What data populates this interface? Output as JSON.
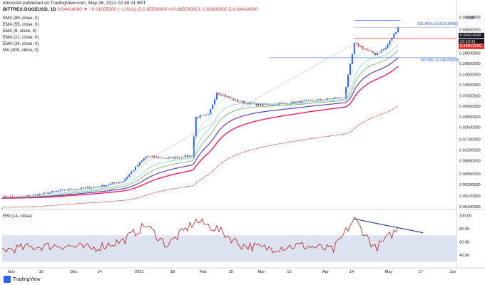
{
  "header": {
    "publisher_line": "dmoss94 published on TradingView.com, May 06, 2021 02:49:31 BST",
    "symbol": "BITTREX:DOGEUSD, 1D",
    "ohlc_text": "0.64414000 ▼ −0.01055000 (−1.61%) O:0.65500000 H:0.66578000 L:0.62603000 C:0.64414000"
  },
  "indicators": [
    "EMA (89, close, 0)",
    "EMA (55, close, 0)",
    "EMA (8, close, 0)",
    "EMA (21, close, 0)",
    "EMA (34, close, 0)",
    "MA (200, close, 0)"
  ],
  "rsi_label": "RSI (14, close)",
  "price_tags": {
    "last": "0.64414000",
    "countdown": "22:10:31",
    "level": "0.44813000"
  },
  "fib_labels": {
    "upper": "161.80% (0.81318498)",
    "lower": "50.00% (0.24076000)"
  },
  "footer": {
    "brand": "TradingView"
  },
  "colors": {
    "up": "#2962ff",
    "down": "#e53935",
    "ema89": "#e91e63",
    "ema55": "#673ab7",
    "ema8": "#b2dfdb",
    "ema21": "#80cbc4",
    "ema34": "#4caf50",
    "ma200": "#c62828",
    "rsi": "#b71c1c",
    "rsi_band": "#c5cfe6",
    "trend": "#1e3a8a"
  },
  "chart_data": [
    {
      "type": "candlestick",
      "title": "BITTREX:DOGEUSD, 1D",
      "scale": "log",
      "y_unit": "USD",
      "ylim": [
        0.0019,
        0.9
      ],
      "x_tick_labels": [
        "Nov",
        "16",
        "Dec",
        "14",
        "2021",
        "18",
        "Feb",
        "15",
        "Mar",
        "15",
        "Apr",
        "14",
        "May",
        "17",
        "Jun"
      ],
      "y_tick_labels": [
        "0.90000000",
        "0.60000000",
        "0.40000000",
        "0.28000000",
        "0.20000000",
        "0.14000000",
        "0.10000000",
        "0.07000000",
        "0.05000000",
        "0.03500000",
        "0.02500000",
        "0.01700000",
        "0.01200000",
        "0.00850000",
        "0.00550000",
        "0.00390000",
        "0.00270000",
        "0.00190000"
      ],
      "y_ticks": [
        0.9,
        0.6,
        0.4,
        0.28,
        0.2,
        0.14,
        0.1,
        0.07,
        0.05,
        0.035,
        0.025,
        0.017,
        0.012,
        0.0085,
        0.0055,
        0.0039,
        0.0027,
        0.0019
      ],
      "close_path": [
        [
          "2020-10-28",
          0.0026
        ],
        [
          "2020-11-05",
          0.0026
        ],
        [
          "2020-11-15",
          0.0028
        ],
        [
          "2020-11-25",
          0.0032
        ],
        [
          "2020-12-05",
          0.0034
        ],
        [
          "2020-12-15",
          0.0037
        ],
        [
          "2020-12-25",
          0.0044
        ],
        [
          "2021-01-05",
          0.0097
        ],
        [
          "2021-01-15",
          0.0092
        ],
        [
          "2021-01-27",
          0.0099
        ],
        [
          "2021-01-29",
          0.035
        ],
        [
          "2021-02-04",
          0.037
        ],
        [
          "2021-02-08",
          0.078
        ],
        [
          "2021-02-18",
          0.058
        ],
        [
          "2021-03-01",
          0.052
        ],
        [
          "2021-03-15",
          0.055
        ],
        [
          "2021-03-30",
          0.061
        ],
        [
          "2021-04-10",
          0.066
        ],
        [
          "2021-04-15",
          0.38
        ],
        [
          "2021-04-25",
          0.27
        ],
        [
          "2021-04-30",
          0.33
        ],
        [
          "2021-05-06",
          0.64414
        ]
      ],
      "levels": [
        {
          "name": "161.80%",
          "value": 0.81318498
        },
        {
          "name": "50.00%",
          "value": 0.24076
        },
        {
          "name": "last",
          "value": 0.64414
        },
        {
          "name": "level",
          "value": 0.44813
        }
      ]
    },
    {
      "type": "line",
      "title": "RSI (14, close)",
      "ylim": [
        25,
        105
      ],
      "y_tick_labels": [
        "100.00",
        "80.00",
        "60.00",
        "40.00"
      ],
      "y_ticks": [
        100,
        80,
        60,
        40
      ],
      "band": [
        30,
        70
      ],
      "x": [
        "2020-10-28",
        "2020-11-10",
        "2020-11-25",
        "2020-12-10",
        "2020-12-25",
        "2021-01-05",
        "2021-01-15",
        "2021-01-29",
        "2021-02-08",
        "2021-02-20",
        "2021-03-05",
        "2021-03-20",
        "2021-04-05",
        "2021-04-15",
        "2021-04-25",
        "2021-05-06"
      ],
      "values": [
        48,
        52,
        55,
        50,
        62,
        86,
        55,
        92,
        80,
        55,
        50,
        55,
        48,
        95,
        50,
        80
      ],
      "trendline": [
        [
          "2021-04-15",
          95
        ],
        [
          "2021-05-18",
          74
        ]
      ]
    }
  ]
}
